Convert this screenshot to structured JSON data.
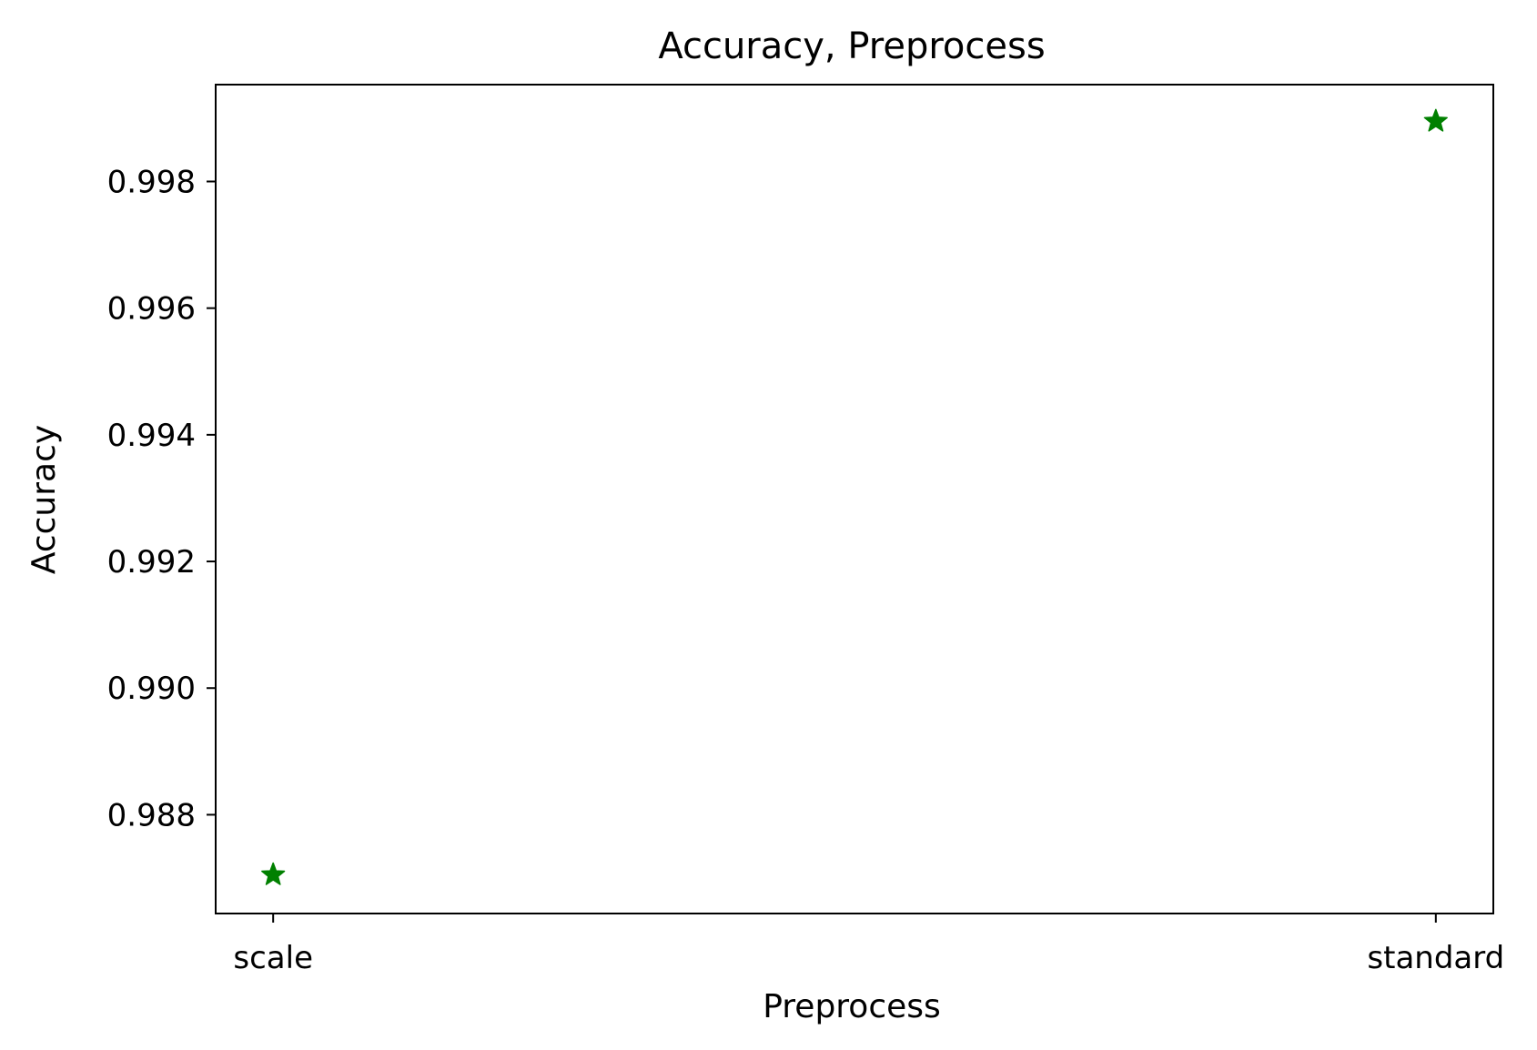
{
  "chart_data": {
    "type": "scatter",
    "title": "Accuracy, Preprocess",
    "xlabel": "Preprocess",
    "ylabel": "Accuracy",
    "categories": [
      "scale",
      "standard"
    ],
    "series": [
      {
        "marker": "star",
        "color": "#008000",
        "values": [
          0.98705,
          0.99895
        ]
      }
    ],
    "yticks": [
      "0.988",
      "0.990",
      "0.992",
      "0.994",
      "0.996",
      "0.998"
    ],
    "ylim": [
      0.98644,
      0.99953
    ],
    "grid": false,
    "legend": "none"
  }
}
